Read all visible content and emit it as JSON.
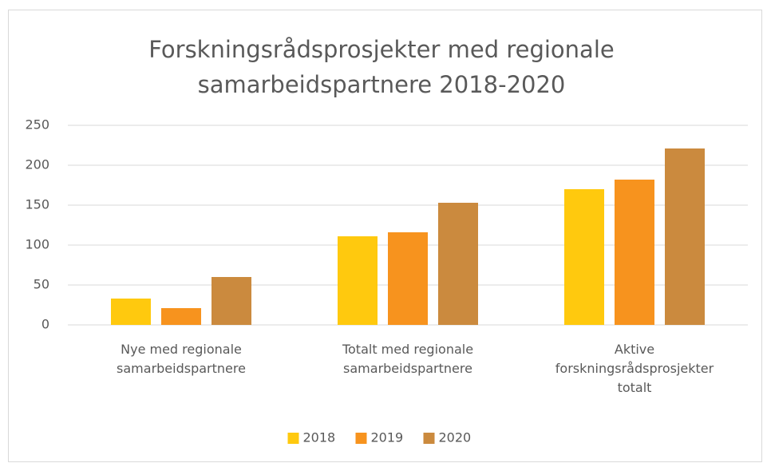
{
  "chart_data": {
    "type": "bar",
    "title": "Forskningsrådsprosjekter med regionale samarbeidspartnere 2018-2020",
    "categories": [
      "Nye med regionale samarbeidspartnere",
      "Totalt med regionale samarbeidspartnere",
      "Aktive forskningsrådsprosjekter totalt"
    ],
    "series": [
      {
        "name": "2018",
        "color": "#ffc90e",
        "values": [
          33,
          111,
          170
        ]
      },
      {
        "name": "2019",
        "color": "#f7931e",
        "values": [
          21,
          116,
          182
        ]
      },
      {
        "name": "2020",
        "color": "#cb8a3e",
        "values": [
          60,
          153,
          221
        ]
      }
    ],
    "ylim": [
      0,
      250
    ],
    "yticks": [
      0,
      50,
      100,
      150,
      200,
      250
    ],
    "grid": true,
    "legend": "bottom"
  }
}
